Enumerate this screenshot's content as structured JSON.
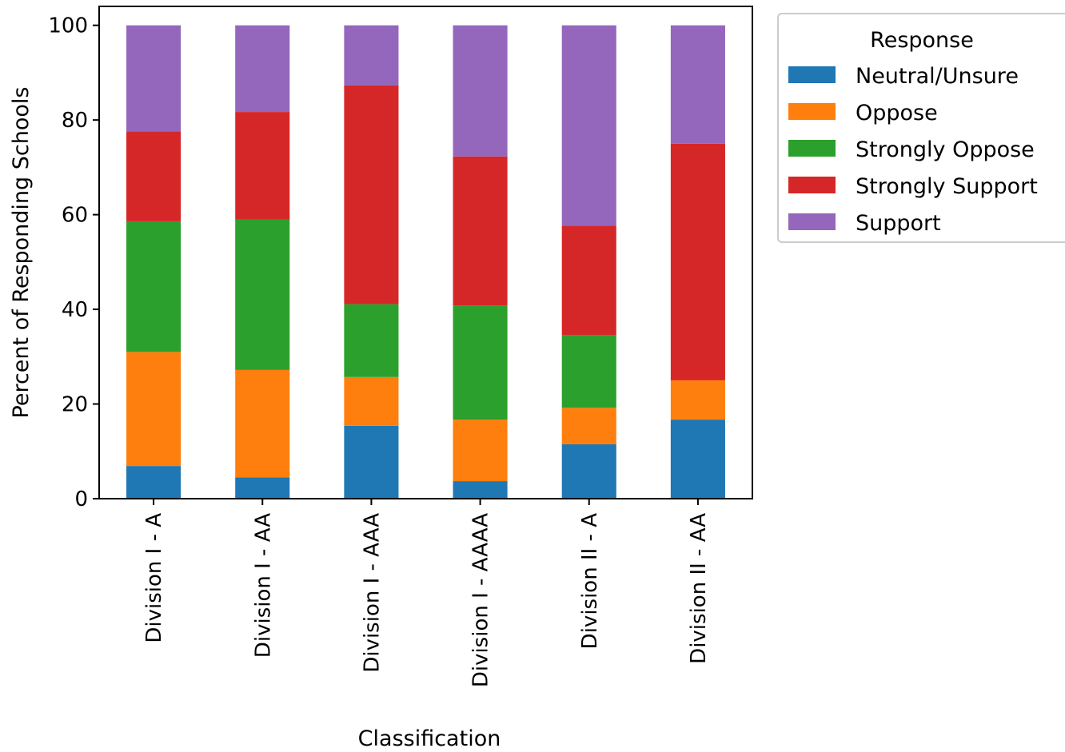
{
  "chart_data": {
    "type": "bar",
    "stacked": true,
    "title": "",
    "xlabel": "Classification",
    "ylabel": "Percent of Responding Schools",
    "ylim": [
      0,
      104
    ],
    "yticks": [
      0,
      20,
      40,
      60,
      80,
      100
    ],
    "grid": false,
    "categories": [
      "Division I - A",
      "Division I - AA",
      "Division I - AAA",
      "Division I - AAAA",
      "Division II - A",
      "Division II - AA"
    ],
    "series": [
      {
        "name": "Neutral/Unsure",
        "color": "#1f77b4",
        "values": [
          6.9,
          4.5,
          15.4,
          3.7,
          11.5,
          16.7
        ]
      },
      {
        "name": "Oppose",
        "color": "#ff7f0e",
        "values": [
          24.1,
          22.7,
          10.3,
          13.0,
          7.7,
          8.3
        ]
      },
      {
        "name": "Strongly Oppose",
        "color": "#2ca02c",
        "values": [
          27.6,
          31.8,
          15.4,
          24.1,
          15.4,
          0
        ]
      },
      {
        "name": "Strongly Support",
        "color": "#d62728",
        "values": [
          19.0,
          22.7,
          46.2,
          31.5,
          23.1,
          50.0
        ]
      },
      {
        "name": "Support",
        "color": "#9467bd",
        "values": [
          22.4,
          18.3,
          12.7,
          27.7,
          42.3,
          25.0
        ]
      }
    ],
    "legend": {
      "title": "Response",
      "placement": "outside-upper-right"
    }
  }
}
